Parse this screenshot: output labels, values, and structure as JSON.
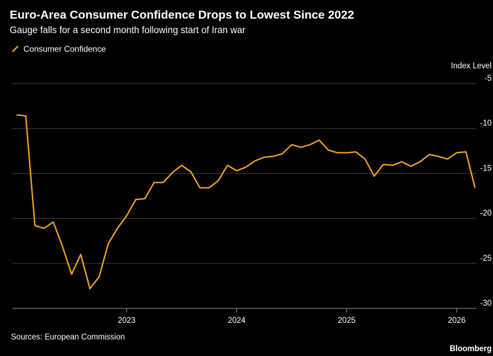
{
  "header": {
    "title": "Euro-Area Consumer Confidence Drops to Lowest Since 2022",
    "subtitle": "Gauge falls for a second month following start of Iran war"
  },
  "legend": {
    "label": "Consumer Confidence"
  },
  "footer": {
    "source": "Sources: European Commission",
    "brand": "Bloomberg"
  },
  "colors": {
    "line": "#f5a623",
    "grid": "#3a3a3a",
    "background": "#000000",
    "text": "#ffffff"
  },
  "chart_data": {
    "type": "line",
    "title": "Euro-Area Consumer Confidence Drops to Lowest Since 2022",
    "subtitle": "Gauge falls for a second month following start of Iran war",
    "ylabel": "Index Level",
    "ylim": [
      -30,
      -5
    ],
    "yticks": [
      -5,
      -10,
      -15,
      -20,
      -25,
      -30
    ],
    "ytick_labels": [
      "-5",
      "-10",
      "-15",
      "-20",
      "-25",
      "-30"
    ],
    "xticks": [
      "2023",
      "2024",
      "2025",
      "2026"
    ],
    "y_axis_position": "right",
    "grid": true,
    "legend_position": "top-left",
    "series": [
      {
        "name": "Consumer Confidence",
        "x": [
          "2022-01",
          "2022-02",
          "2022-03",
          "2022-04",
          "2022-05",
          "2022-06",
          "2022-07",
          "2022-08",
          "2022-09",
          "2022-10",
          "2022-11",
          "2022-12",
          "2023-01",
          "2023-02",
          "2023-03",
          "2023-04",
          "2023-05",
          "2023-06",
          "2023-07",
          "2023-08",
          "2023-09",
          "2023-10",
          "2023-11",
          "2023-12",
          "2024-01",
          "2024-02",
          "2024-03",
          "2024-04",
          "2024-05",
          "2024-06",
          "2024-07",
          "2024-08",
          "2024-09",
          "2024-10",
          "2024-11",
          "2024-12",
          "2025-01",
          "2025-02",
          "2025-03",
          "2025-04",
          "2025-05",
          "2025-06",
          "2025-07",
          "2025-08",
          "2025-09",
          "2025-10",
          "2025-11",
          "2025-12",
          "2026-01",
          "2026-02",
          "2026-03"
        ],
        "values": [
          -8.5,
          -8.6,
          -20.8,
          -21.1,
          -20.4,
          -23.1,
          -26.2,
          -24.0,
          -27.8,
          -26.5,
          -22.8,
          -21.1,
          -19.7,
          -17.9,
          -17.8,
          -16.0,
          -16.0,
          -14.9,
          -14.1,
          -14.8,
          -16.6,
          -16.6,
          -15.8,
          -14.1,
          -14.7,
          -14.3,
          -13.6,
          -13.2,
          -13.1,
          -12.8,
          -11.8,
          -12.1,
          -11.8,
          -11.3,
          -12.4,
          -12.7,
          -12.7,
          -12.6,
          -13.4,
          -15.3,
          -14.0,
          -14.1,
          -13.7,
          -14.2,
          -13.7,
          -12.9,
          -13.1,
          -13.4,
          -12.7,
          -12.6,
          -16.6
        ]
      }
    ]
  }
}
